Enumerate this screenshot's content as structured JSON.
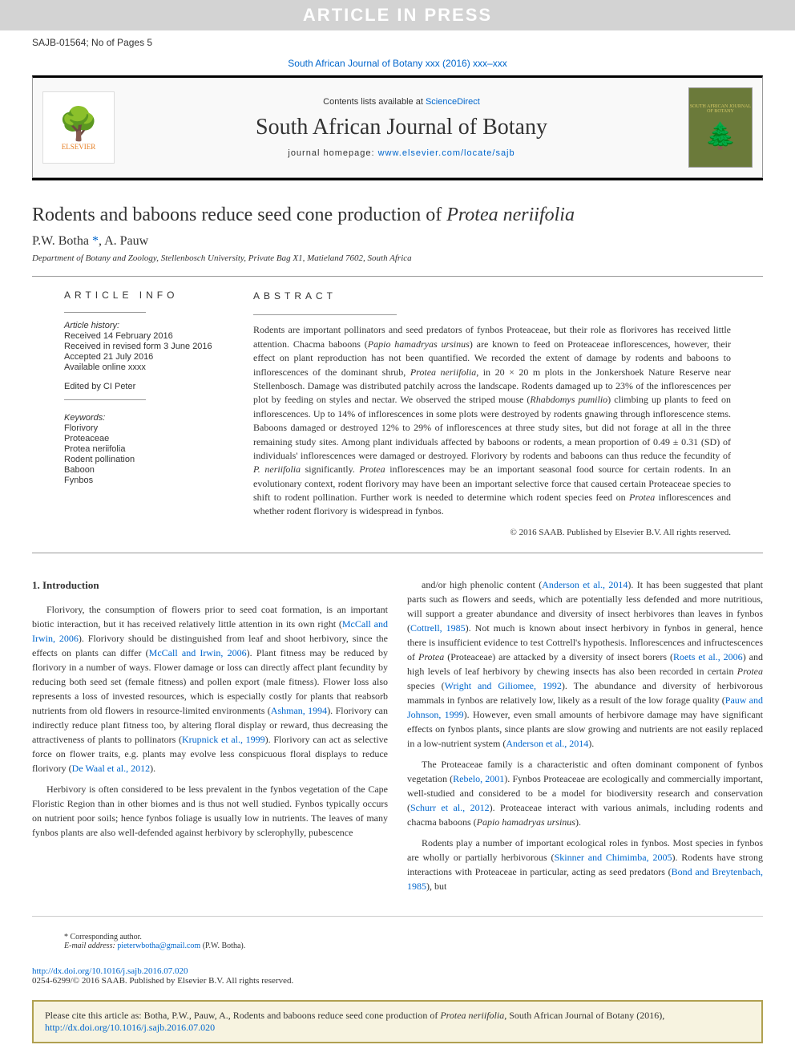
{
  "banner": "ARTICLE IN PRESS",
  "header": {
    "left": "SAJB-01564; No of Pages 5",
    "right": ""
  },
  "citation_line": {
    "prefix": "",
    "link": "South African Journal of Botany xxx (2016) xxx–xxx"
  },
  "journal_box": {
    "contents_prefix": "Contents lists available at ",
    "contents_link": "ScienceDirect",
    "journal_name": "South African Journal of Botany",
    "homepage_prefix": "journal homepage: ",
    "homepage_link": "www.elsevier.com/locate/sajb",
    "publisher": "ELSEVIER",
    "cover_title": "SOUTH AFRICAN JOURNAL OF BOTANY"
  },
  "article": {
    "title_prefix": "Rodents and baboons reduce seed cone production of ",
    "title_species": "Protea neriifolia",
    "authors_text": "P.W. Botha ",
    "corresponding_mark": "*",
    "authors_rest": ", A. Pauw",
    "affiliation": "Department of Botany and Zoology, Stellenbosch University, Private Bag X1, Matieland 7602, South Africa"
  },
  "meta": {
    "info_label": "article info",
    "history_label": "Article history:",
    "received": "Received 14 February 2016",
    "revised": "Received in revised form 3 June 2016",
    "accepted": "Accepted 21 July 2016",
    "online": "Available online xxxx",
    "editor": "Edited by CI Peter",
    "keywords_label": "Keywords:",
    "keywords": [
      "Florivory",
      "Proteaceae",
      "Protea neriifolia",
      "Rodent pollination",
      "Baboon",
      "Fynbos"
    ]
  },
  "abstract": {
    "label": "abstract",
    "text_parts": [
      {
        "t": "Rodents are important pollinators and seed predators of fynbos Proteaceae, but their role as florivores has received little attention. Chacma baboons ("
      },
      {
        "t": "Papio hamadryas ursinus",
        "i": true
      },
      {
        "t": ") are known to feed on Proteaceae inflorescences, however, their effect on plant reproduction has not been quantified. We recorded the extent of damage by rodents and baboons to inflorescences of the dominant shrub, "
      },
      {
        "t": "Protea neriifolia",
        "i": true
      },
      {
        "t": ", in 20 × 20 m plots in the Jonkershoek Nature Reserve near Stellenbosch. Damage was distributed patchily across the landscape. Rodents damaged up to 23% of the inflorescences per plot by feeding on styles and nectar. We observed the striped mouse ("
      },
      {
        "t": "Rhabdomys pumilio",
        "i": true
      },
      {
        "t": ") climbing up plants to feed on inflorescences. Up to 14% of inflorescences in some plots were destroyed by rodents gnawing through inflorescence stems. Baboons damaged or destroyed 12% to 29% of inflorescences at three study sites, but did not forage at all in the three remaining study sites. Among plant individuals affected by baboons or rodents, a mean proportion of 0.49 ± 0.31 (SD) of individuals' inflorescences were damaged or destroyed. Florivory by rodents and baboons can thus reduce the fecundity of "
      },
      {
        "t": "P. neriifolia",
        "i": true
      },
      {
        "t": " significantly. "
      },
      {
        "t": "Protea",
        "i": true
      },
      {
        "t": " inflorescences may be an important seasonal food source for certain rodents. In an evolutionary context, rodent florivory may have been an important selective force that caused certain Proteaceae species to shift to rodent pollination. Further work is needed to determine which rodent species feed on "
      },
      {
        "t": "Protea",
        "i": true
      },
      {
        "t": " inflorescences and whether rodent florivory is widespread in fynbos."
      }
    ],
    "copyright": "© 2016 SAAB. Published by Elsevier B.V. All rights reserved."
  },
  "intro": {
    "heading": "1. Introduction",
    "left_paras": [
      [
        {
          "t": "Florivory, the consumption of flowers prior to seed coat formation, is an important biotic interaction, but it has received relatively little attention in its own right ("
        },
        {
          "t": "McCall and Irwin, 2006",
          "l": true
        },
        {
          "t": "). Florivory should be distinguished from leaf and shoot herbivory, since the effects on plants can differ ("
        },
        {
          "t": "McCall and Irwin, 2006",
          "l": true
        },
        {
          "t": "). Plant fitness may be reduced by florivory in a number of ways. Flower damage or loss can directly affect plant fecundity by reducing both seed set (female fitness) and pollen export (male fitness). Flower loss also represents a loss of invested resources, which is especially costly for plants that reabsorb nutrients from old flowers in resource-limited environments ("
        },
        {
          "t": "Ashman, 1994",
          "l": true
        },
        {
          "t": "). Florivory can indirectly reduce plant fitness too, by altering floral display or reward, thus decreasing the attractiveness of plants to pollinators ("
        },
        {
          "t": "Krupnick et al., 1999",
          "l": true
        },
        {
          "t": "). Florivory can act as selective force on flower traits, e.g. plants may evolve less conspicuous floral displays to reduce florivory ("
        },
        {
          "t": "De Waal et al., 2012",
          "l": true
        },
        {
          "t": ")."
        }
      ],
      [
        {
          "t": "Herbivory is often considered to be less prevalent in the fynbos vegetation of the Cape Floristic Region than in other biomes and is thus not well studied. Fynbos typically occurs on nutrient poor soils; hence fynbos foliage is usually low in nutrients. The leaves of many fynbos plants are also well-defended against herbivory by sclerophylly, pubescence"
        }
      ]
    ],
    "right_paras": [
      [
        {
          "t": "and/or high phenolic content ("
        },
        {
          "t": "Anderson et al., 2014",
          "l": true
        },
        {
          "t": "). It has been suggested that plant parts such as flowers and seeds, which are potentially less defended and more nutritious, will support a greater abundance and diversity of insect herbivores than leaves in fynbos ("
        },
        {
          "t": "Cottrell, 1985",
          "l": true
        },
        {
          "t": "). Not much is known about insect herbivory in fynbos in general, hence there is insufficient evidence to test Cottrell's hypothesis. Inflorescences and infructescences of "
        },
        {
          "t": "Protea",
          "i": true
        },
        {
          "t": " (Proteaceae) are attacked by a diversity of insect borers ("
        },
        {
          "t": "Roets et al., 2006",
          "l": true
        },
        {
          "t": ") and high levels of leaf herbivory by chewing insects has also been recorded in certain "
        },
        {
          "t": "Protea",
          "i": true
        },
        {
          "t": " species ("
        },
        {
          "t": "Wright and Giliomee, 1992",
          "l": true
        },
        {
          "t": "). The abundance and diversity of herbivorous mammals in fynbos are relatively low, likely as a result of the low forage quality ("
        },
        {
          "t": "Pauw and Johnson, 1999",
          "l": true
        },
        {
          "t": "). However, even small amounts of herbivore damage may have significant effects on fynbos plants, since plants are slow growing and nutrients are not easily replaced in a low-nutrient system ("
        },
        {
          "t": "Anderson et al., 2014",
          "l": true
        },
        {
          "t": ")."
        }
      ],
      [
        {
          "t": "The Proteaceae family is a characteristic and often dominant component of fynbos vegetation ("
        },
        {
          "t": "Rebelo, 2001",
          "l": true
        },
        {
          "t": "). Fynbos Proteaceae are ecologically and commercially important, well-studied and considered to be a model for biodiversity research and conservation ("
        },
        {
          "t": "Schurr et al., 2012",
          "l": true
        },
        {
          "t": "). Proteaceae interact with various animals, including rodents and chacma baboons ("
        },
        {
          "t": "Papio hamadryas ursinus",
          "i": true
        },
        {
          "t": ")."
        }
      ],
      [
        {
          "t": "Rodents play a number of important ecological roles in fynbos. Most species in fynbos are wholly or partially herbivorous ("
        },
        {
          "t": "Skinner and Chimimba, 2005",
          "l": true
        },
        {
          "t": "). Rodents have strong interactions with Proteaceae in particular, acting as seed predators ("
        },
        {
          "t": "Bond and Breytenbach, 1985",
          "l": true
        },
        {
          "t": "), but"
        }
      ]
    ]
  },
  "footnote": {
    "mark": "*",
    "label": " Corresponding author.",
    "email_label": "E-mail address: ",
    "email": "pieterwbotha@gmail.com",
    "email_suffix": " (P.W. Botha)."
  },
  "doi": {
    "link": "http://dx.doi.org/10.1016/j.sajb.2016.07.020",
    "issn": "0254-6299/© 2016 SAAB. Published by Elsevier B.V. All rights reserved."
  },
  "cite_box": {
    "prefix": "Please cite this article as: Botha, P.W., Pauw, A., Rodents and baboons reduce seed cone production of ",
    "species": "Protea neriifolia",
    "middle": ", South African Journal of Botany (2016), ",
    "link": "http://dx.doi.org/10.1016/j.sajb.2016.07.020"
  },
  "colors": {
    "banner_bg": "#d3d3d3",
    "banner_fg": "#ffffff",
    "link": "#0066cc",
    "elsevier": "#e67e22",
    "cover_bg": "#6b7a3a",
    "cite_border": "#b0a050",
    "cite_bg": "#f7f3e0"
  }
}
